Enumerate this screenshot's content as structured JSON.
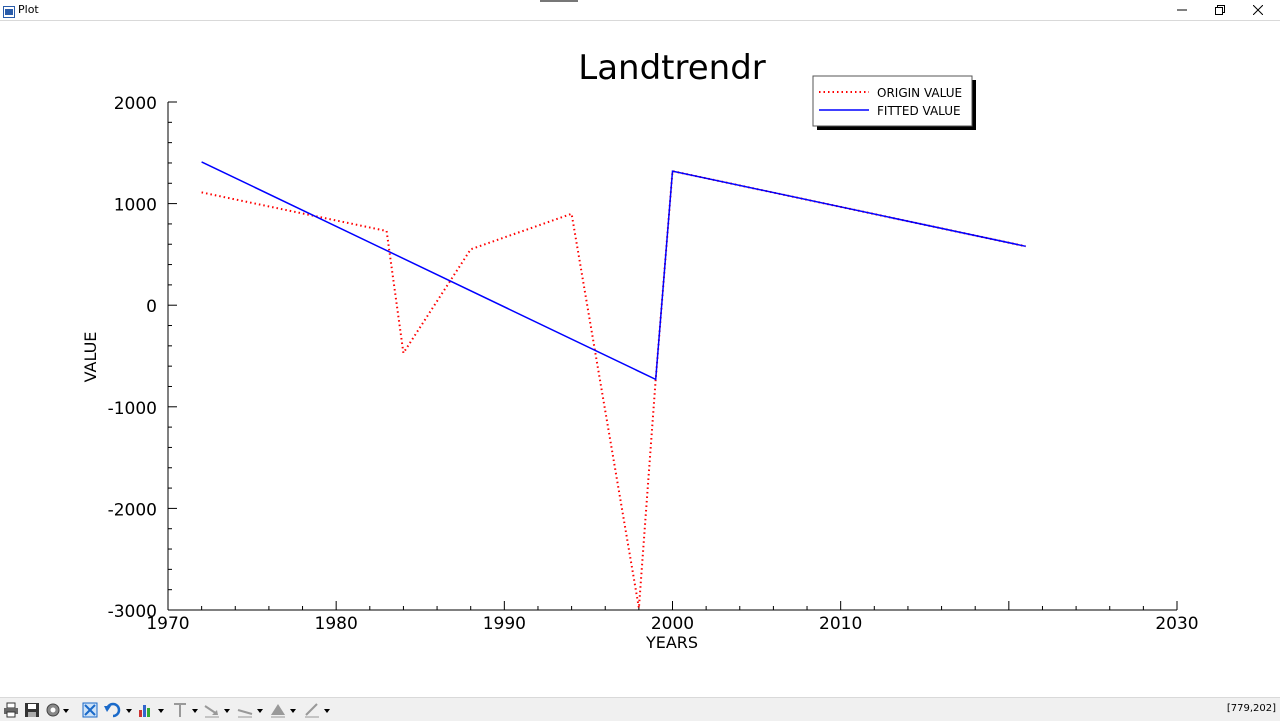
{
  "window": {
    "title": "Plot",
    "coords": "[779,202]"
  },
  "colors": {
    "origin": "#ff0000",
    "fitted": "#0000ff",
    "axis": "#000000"
  },
  "toolbar": {
    "icons": [
      "print-icon",
      "save-icon",
      "settings-icon",
      "fit-window-icon",
      "undo-icon",
      "insert-chart-icon",
      "text-tool-icon",
      "arrow-tool-icon",
      "line-tool-icon",
      "polygon-tool-icon",
      "pen-tool-icon"
    ]
  },
  "chart_data": {
    "type": "line",
    "title": "Landtrendr",
    "xlabel": "YEARS",
    "ylabel": "VALUE",
    "xlim": [
      1970,
      2030
    ],
    "ylim": [
      -3000,
      2000
    ],
    "xticks": [
      "1970",
      "1980",
      "1990",
      "2000",
      "2010",
      "2030"
    ],
    "xticks_all": [
      1970,
      1980,
      1990,
      2000,
      2010,
      2020,
      2030
    ],
    "yticks": [
      2000,
      1000,
      0,
      -1000,
      -2000,
      -3000
    ],
    "ytick_labels": [
      "2000",
      "1000",
      "0",
      "-1000",
      "-2000",
      "-3000"
    ],
    "legend_position": "top-right",
    "series": [
      {
        "name": "ORIGIN VALUE",
        "style": "dotted",
        "color": "#ff0000",
        "x": [
          1972,
          1983,
          1984,
          1988,
          1994,
          1998,
          1999,
          2000,
          2021
        ],
        "y": [
          1110,
          730,
          -470,
          550,
          900,
          -2980,
          -730,
          1320,
          580
        ]
      },
      {
        "name": "FITTED VALUE",
        "style": "solid",
        "color": "#0000ff",
        "x": [
          1972,
          1999,
          2000,
          2021
        ],
        "y": [
          1410,
          -730,
          1320,
          580
        ]
      }
    ]
  }
}
